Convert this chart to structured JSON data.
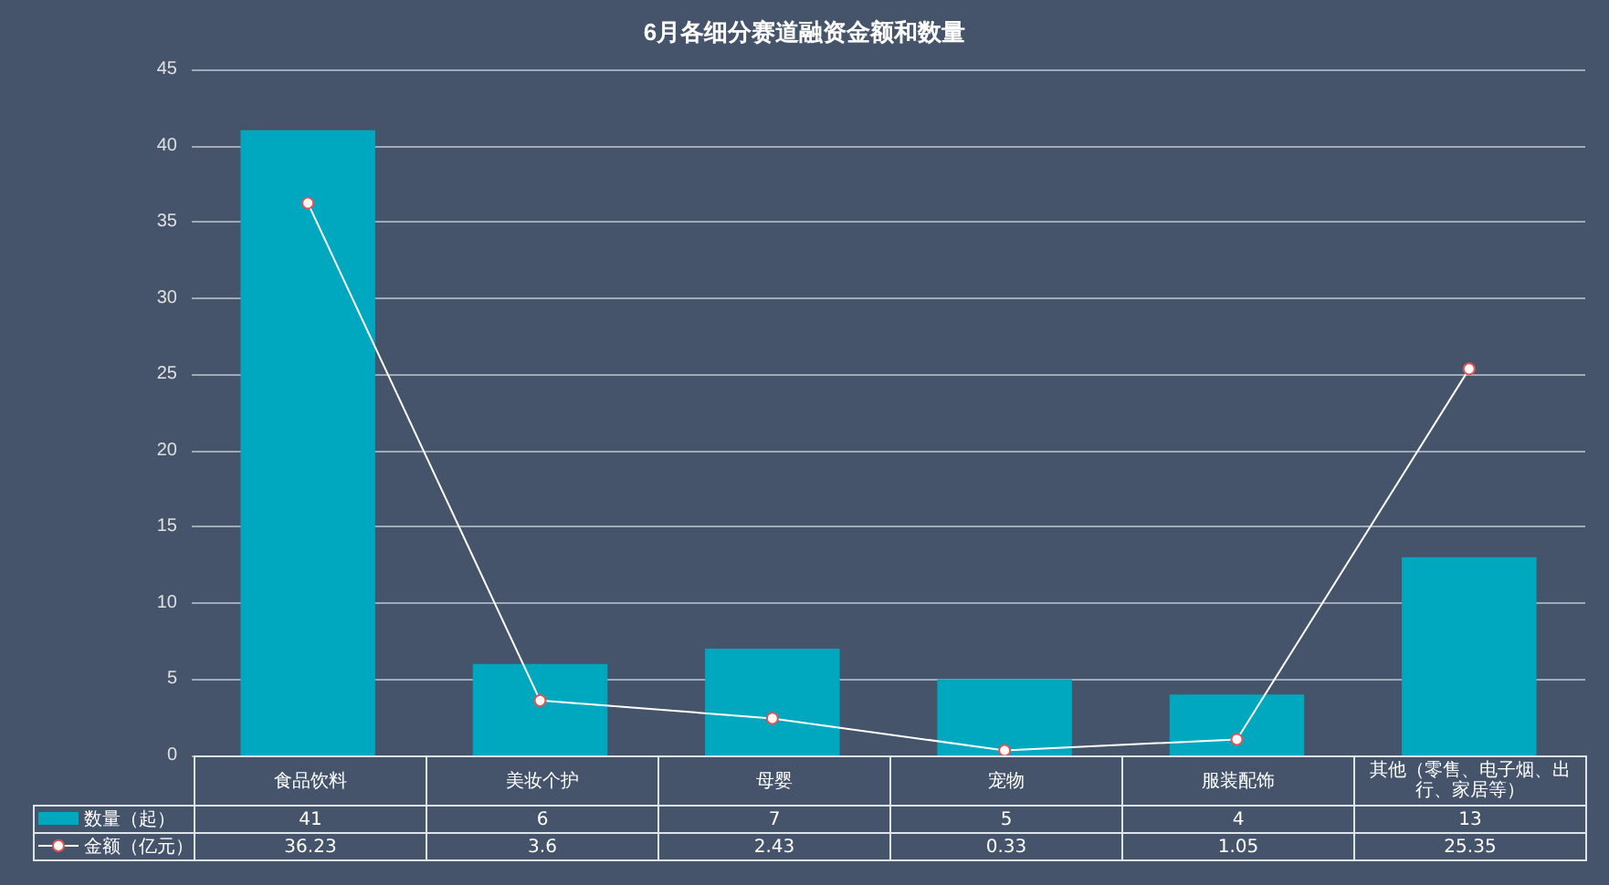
{
  "chart_data": {
    "type": "bar",
    "title": "6月各细分赛道融资金额和数量",
    "categories": [
      "食品饮料",
      "美妆个护",
      "母婴",
      "宠物",
      "服装配饰",
      "其他（零售、电子烟、出行、家居等）"
    ],
    "series": [
      {
        "name": "数量（起）",
        "color": "#00a8bf",
        "values": [
          41,
          6,
          7,
          5,
          4,
          13
        ]
      },
      {
        "name": "金额（亿元）",
        "type": "line",
        "color": "#ffffff",
        "marker": "circle",
        "values": [
          36.23,
          3.6,
          2.43,
          0.33,
          1.05,
          25.35
        ]
      }
    ],
    "ylim": [
      0,
      45
    ],
    "yticks": [
      0,
      5,
      10,
      15,
      20,
      25,
      30,
      35,
      40,
      45
    ],
    "grid": "y",
    "legend": "bottom left",
    "data_labels": true
  }
}
